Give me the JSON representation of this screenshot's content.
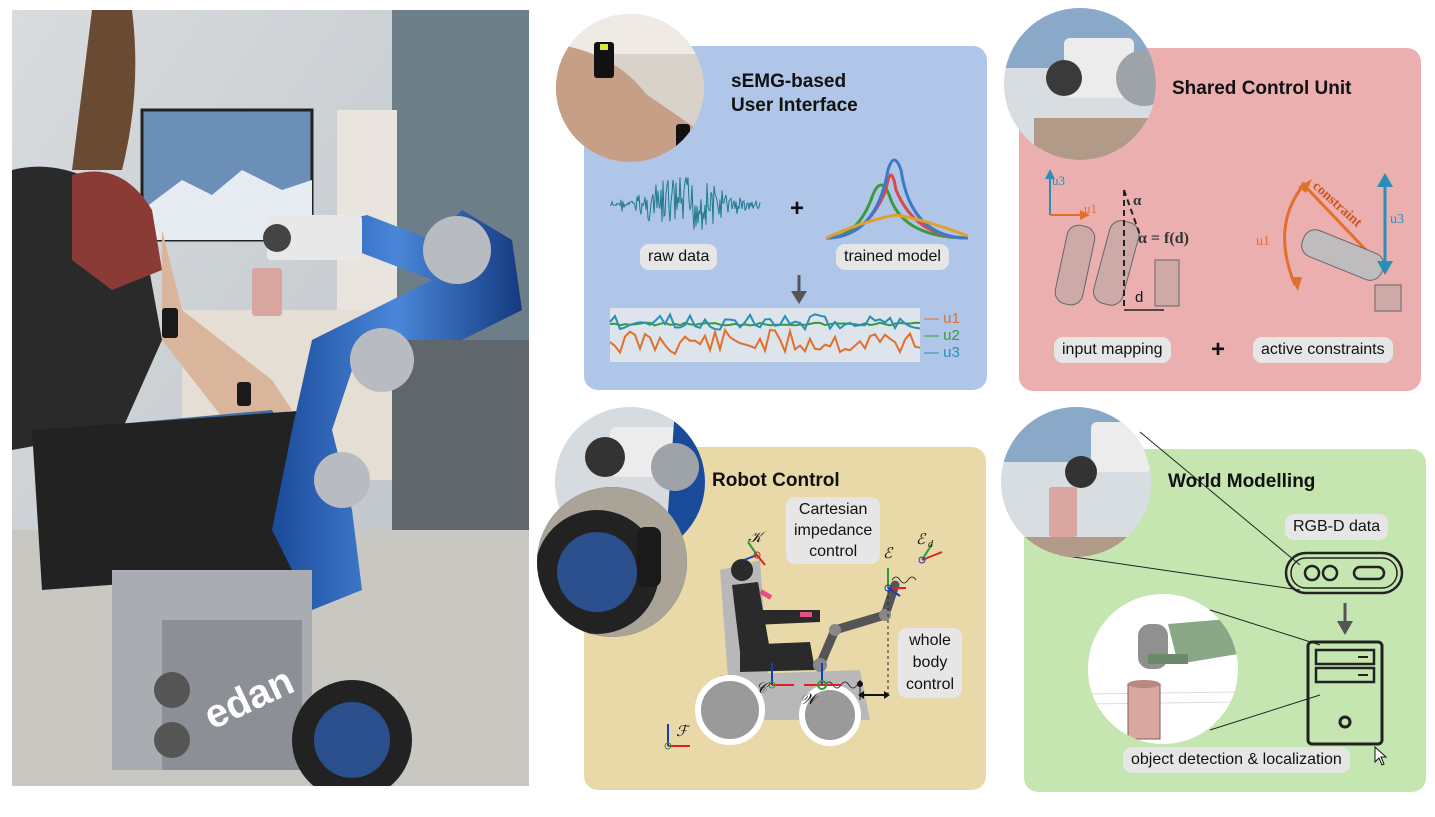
{
  "semg": {
    "title_line1": "sEMG-based",
    "title_line2": "User Interface",
    "raw_data": "raw data",
    "plus": "+",
    "trained_model": "trained model",
    "legend": [
      "u1",
      "u2",
      "u3"
    ]
  },
  "shared": {
    "title": "Shared Control Unit",
    "alpha": "α",
    "alpha_eq": "α = f(d)",
    "d": "d",
    "constraint": "constraint",
    "u1": "u1",
    "u3": "u3",
    "input_mapping": "input mapping",
    "plus": "+",
    "active_constraints": "active constraints"
  },
  "robot": {
    "title": "Robot Control",
    "cartesian": [
      "Cartesian",
      "impedance",
      "control"
    ],
    "whole_body": [
      "whole",
      "body",
      "control"
    ],
    "frames": {
      "K": "𝒦",
      "E": "ℰ",
      "Ed": "ℰ",
      "Ed_sub": "d",
      "C": "𝒞",
      "W": "𝒲",
      "F": "ℱ"
    }
  },
  "world": {
    "title": "World Modelling",
    "rgbd": "RGB-D data",
    "detection": "object detection & localization"
  },
  "photo": {
    "brand": "edan"
  },
  "colors": {
    "blue_panel": "#afc6e8",
    "red_panel": "#ecafb0",
    "yellow_panel": "#ead9a8",
    "green_panel": "#c6e6b1",
    "u1": "#e0702a",
    "u2": "#3a9a3a",
    "u3": "#2a8fb8"
  }
}
